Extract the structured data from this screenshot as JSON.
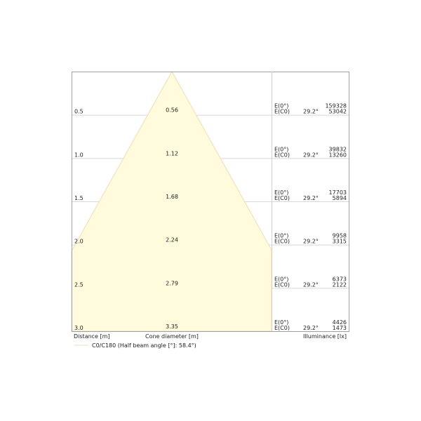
{
  "chart_data": {
    "type": "cone-diagram",
    "colors": {
      "cone_fill": "#fffbdc",
      "cone_stroke": "#f3dcb0",
      "grid": "#d8d8d8",
      "frame": "#a0a0a0"
    },
    "rows": [
      {
        "distance": "0.5",
        "diameter": "0.56",
        "label_e0": "E(0°)",
        "label_ec0": "E(C0)",
        "angle": "29.2°",
        "e0": "159328",
        "ec0": "53042"
      },
      {
        "distance": "1.0",
        "diameter": "1.12",
        "label_e0": "E(0°)",
        "label_ec0": "E(C0)",
        "angle": "29.2°",
        "e0": "39832",
        "ec0": "13260"
      },
      {
        "distance": "1.5",
        "diameter": "1.68",
        "label_e0": "E(0°)",
        "label_ec0": "E(C0)",
        "angle": "29.2°",
        "e0": "17703",
        "ec0": "5894"
      },
      {
        "distance": "2.0",
        "diameter": "2.24",
        "label_e0": "E(0°)",
        "label_ec0": "E(C0)",
        "angle": "29.2°",
        "e0": "9958",
        "ec0": "3315"
      },
      {
        "distance": "2.5",
        "diameter": "2.79",
        "label_e0": "E(0°)",
        "label_ec0": "E(C0)",
        "angle": "29.2°",
        "e0": "6373",
        "ec0": "2122"
      },
      {
        "distance": "3.0",
        "diameter": "3.35",
        "label_e0": "E(0°)",
        "label_ec0": "E(C0)",
        "angle": "29.2°",
        "e0": "4426",
        "ec0": "1473"
      }
    ],
    "xlabel_distance": "Distance [m]",
    "xlabel_diameter": "Cone diameter [m]",
    "xlabel_illuminance": "Illuminance [lx]",
    "legend": "C0/C180 (Half beam angle [°]: 58.4°)",
    "half_beam_angle_deg": 58.4,
    "max_distance": 3.0
  }
}
